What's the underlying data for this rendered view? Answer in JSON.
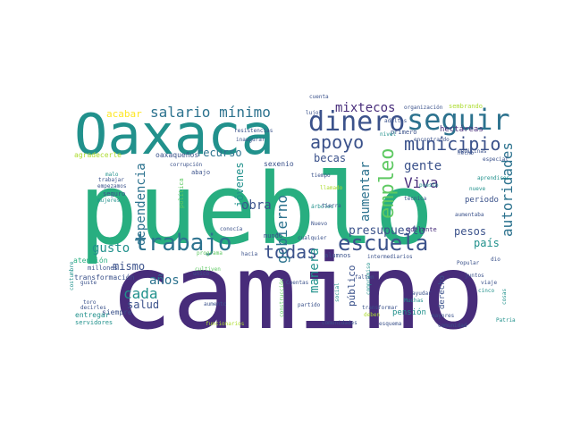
{
  "palette": {
    "purple": "#472c7a",
    "indigo": "#3b528b",
    "blue": "#2c728e",
    "teal": "#21918c",
    "green": "#28ae80",
    "lime": "#5ec962",
    "lightgreen": "#addc30",
    "yellow": "#fde725",
    "darkpurple": "#440154"
  },
  "words": [
    {
      "text": "camino",
      "color": "purple"
    },
    {
      "text": "pueblo",
      "color": "green"
    },
    {
      "text": "Oaxaca",
      "color": "teal"
    },
    {
      "text": "trabajo",
      "color": "blue"
    },
    {
      "text": "escuela",
      "color": "indigo"
    },
    {
      "text": "seguir",
      "color": "blue"
    },
    {
      "text": "dinero",
      "color": "indigo"
    },
    {
      "text": "municipio",
      "color": "indigo"
    },
    {
      "text": "salario mínimo",
      "color": "blue"
    },
    {
      "text": "apoyo",
      "color": "indigo"
    },
    {
      "text": "empleo",
      "color": "lime"
    },
    {
      "text": "todas",
      "color": "indigo"
    },
    {
      "text": "gobierno",
      "color": "blue"
    },
    {
      "text": "autoridades",
      "color": "blue"
    },
    {
      "text": "Viva",
      "color": "purple"
    },
    {
      "text": "gente",
      "color": "indigo"
    },
    {
      "text": "aumentar",
      "color": "blue"
    },
    {
      "text": "mixtecos",
      "color": "purple"
    },
    {
      "text": "obra",
      "color": "indigo"
    },
    {
      "text": "cada",
      "color": "teal"
    },
    {
      "text": "dependencia",
      "color": "blue"
    },
    {
      "text": "jóvenes",
      "color": "teal"
    },
    {
      "text": "recurso",
      "color": "blue"
    },
    {
      "text": "presupuesto",
      "color": "indigo"
    },
    {
      "text": "manera",
      "color": "teal"
    },
    {
      "text": "gusto",
      "color": "teal"
    },
    {
      "text": "años",
      "color": "blue"
    },
    {
      "text": "mismo",
      "color": "indigo"
    },
    {
      "text": "salud",
      "color": "indigo"
    },
    {
      "text": "pesos",
      "color": "indigo"
    },
    {
      "text": "becas",
      "color": "indigo"
    },
    {
      "text": "país",
      "color": "teal"
    },
    {
      "text": "periodo",
      "color": "indigo"
    },
    {
      "text": "público",
      "color": "indigo"
    },
    {
      "text": "acabar",
      "color": "yellow"
    },
    {
      "text": "hectáreas",
      "color": "purple"
    },
    {
      "text": "sexenio",
      "color": "indigo"
    },
    {
      "text": "oaxaqueños",
      "color": "indigo"
    },
    {
      "text": "siempre",
      "color": "indigo"
    },
    {
      "text": "atención",
      "color": "green"
    },
    {
      "text": "transformación",
      "color": "indigo"
    },
    {
      "text": "agradecerle",
      "color": "lightgreen"
    },
    {
      "text": "mundo",
      "color": "indigo"
    },
    {
      "text": "abajo",
      "color": "indigo"
    },
    {
      "text": "seguro",
      "color": "indigo"
    },
    {
      "text": "política",
      "color": "lime"
    },
    {
      "text": "millones",
      "color": "indigo"
    },
    {
      "text": "entregar",
      "color": "teal"
    },
    {
      "text": "servidores",
      "color": "teal"
    },
    {
      "text": "pensión",
      "color": "teal"
    },
    {
      "text": "derecho",
      "color": "indigo"
    },
    {
      "text": "comunidad",
      "color": "indigo"
    },
    {
      "text": "Muchas",
      "color": "teal"
    },
    {
      "text": "primero",
      "color": "indigo"
    },
    {
      "text": "inaugurar",
      "color": "indigo"
    },
    {
      "text": "resistencias",
      "color": "indigo"
    },
    {
      "text": "corrupción",
      "color": "indigo"
    },
    {
      "text": "alumnos",
      "color": "indigo"
    },
    {
      "text": "programa",
      "color": "lime"
    },
    {
      "text": "cultiven",
      "color": "lime"
    },
    {
      "text": "Popular",
      "color": "indigo"
    },
    {
      "text": "juntos",
      "color": "indigo"
    },
    {
      "text": "cinco",
      "color": "teal"
    },
    {
      "text": "aprendices",
      "color": "teal"
    },
    {
      "text": "adelante",
      "color": "purple"
    },
    {
      "text": "técnica",
      "color": "indigo"
    },
    {
      "text": "especial",
      "color": "indigo"
    },
    {
      "text": "encontrando",
      "color": "indigo"
    },
    {
      "text": "medicinas",
      "color": "indigo"
    },
    {
      "text": "intermediarios",
      "color": "indigo"
    },
    {
      "text": "partido",
      "color": "indigo"
    },
    {
      "text": "transformar",
      "color": "indigo"
    },
    {
      "text": "comunidades",
      "color": "indigo"
    },
    {
      "text": "esquema",
      "color": "indigo"
    },
    {
      "text": "mayores",
      "color": "indigo"
    },
    {
      "text": "Patria",
      "color": "teal"
    },
    {
      "text": "viaje",
      "color": "indigo"
    },
    {
      "text": "nueve",
      "color": "teal"
    },
    {
      "text": "dio",
      "color": "indigo"
    },
    {
      "text": "toro",
      "color": "indigo"
    },
    {
      "text": "decirles",
      "color": "indigo"
    },
    {
      "text": "Cuentas",
      "color": "indigo"
    },
    {
      "text": "Nuevo",
      "color": "indigo"
    },
    {
      "text": "falten",
      "color": "indigo"
    },
    {
      "text": "cualquier",
      "color": "indigo"
    },
    {
      "text": "árboles",
      "color": "teal"
    },
    {
      "text": "tierra",
      "color": "indigo"
    },
    {
      "text": "tiempo",
      "color": "indigo"
    },
    {
      "text": "llamado",
      "color": "lightgreen"
    },
    {
      "text": "conocía",
      "color": "indigo"
    },
    {
      "text": "aumento",
      "color": "indigo"
    },
    {
      "text": "hacia",
      "color": "indigo"
    },
    {
      "text": "único",
      "color": "indigo"
    },
    {
      "text": "funcionarios",
      "color": "lightgreen"
    },
    {
      "text": "construcción",
      "color": "lime"
    },
    {
      "text": "ayudar",
      "color": "indigo"
    },
    {
      "text": "social",
      "color": "teal"
    },
    {
      "text": "compromiso",
      "color": "teal"
    },
    {
      "text": "deben",
      "color": "lightgreen"
    },
    {
      "text": "hecho",
      "color": "indigo"
    },
    {
      "text": "cuenta",
      "color": "indigo"
    },
    {
      "text": "lujos",
      "color": "indigo"
    },
    {
      "text": "adultos",
      "color": "indigo"
    },
    {
      "text": "organización",
      "color": "indigo"
    },
    {
      "text": "sembrando",
      "color": "lightgreen"
    },
    {
      "text": "malo",
      "color": "teal"
    },
    {
      "text": "trabajar",
      "color": "indigo"
    },
    {
      "text": "empezamos",
      "color": "indigo"
    },
    {
      "text": "mujeres",
      "color": "teal"
    },
    {
      "text": "nivel",
      "color": "teal"
    },
    {
      "text": "puesto",
      "color": "teal"
    },
    {
      "text": "aumentaba",
      "color": "indigo"
    },
    {
      "text": "costumbre",
      "color": "teal"
    },
    {
      "text": "guste",
      "color": "indigo"
    },
    {
      "text": "cosas",
      "color": "teal"
    }
  ]
}
